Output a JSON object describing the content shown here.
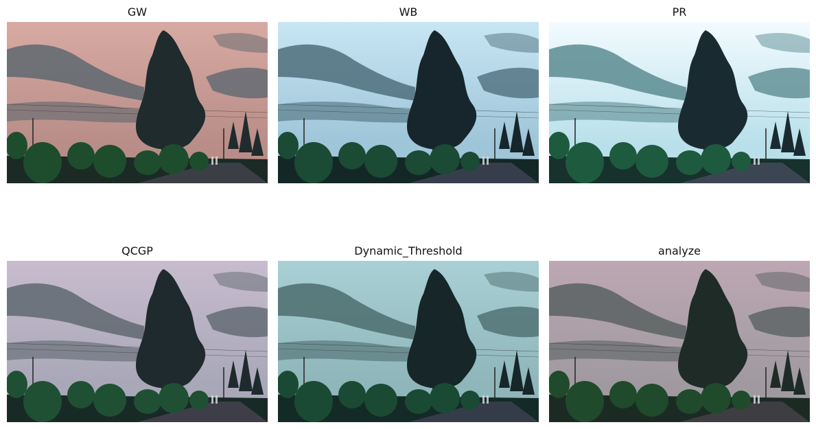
{
  "panels": [
    {
      "title": "GW",
      "sky_top": "#d7aaa2",
      "sky_mid": "#b98d88",
      "cloud": "#5e6870",
      "ground": "#1b2a25",
      "tree": "#1f2b2c",
      "bush": "#1e4d2e",
      "road": "#3b3f45"
    },
    {
      "title": "WB",
      "sky_top": "#c8e6f4",
      "sky_mid": "#9ec5d8",
      "cloud": "#4f6f7d",
      "ground": "#132826",
      "tree": "#17262c",
      "bush": "#1b4a35",
      "road": "#363e4b"
    },
    {
      "title": "PR",
      "sky_top": "#f2fbff",
      "sky_mid": "#b9e0ea",
      "cloud": "#5c8c91",
      "ground": "#17312d",
      "tree": "#1a2a31",
      "bush": "#1d5a3e",
      "road": "#3c4653"
    },
    {
      "title": "QCGP",
      "sky_top": "#c8bccf",
      "sky_mid": "#a9a8b8",
      "cloud": "#5f6870",
      "ground": "#182a26",
      "tree": "#1e2a2d",
      "bush": "#1f5033",
      "road": "#3e3e48"
    },
    {
      "title": "Dynamic_Threshold",
      "sky_top": "#a9d0d4",
      "sky_mid": "#8fb6ba",
      "cloud": "#4e6d6f",
      "ground": "#132a26",
      "tree": "#162629",
      "bush": "#1a4a33",
      "road": "#343c49"
    },
    {
      "title": "analyze",
      "sky_top": "#bda7b3",
      "sky_mid": "#a09aa0",
      "cloud": "#5a6262",
      "ground": "#1b2b24",
      "tree": "#1f2b27",
      "bush": "#1f4a2b",
      "road": "#3e3d42"
    }
  ]
}
